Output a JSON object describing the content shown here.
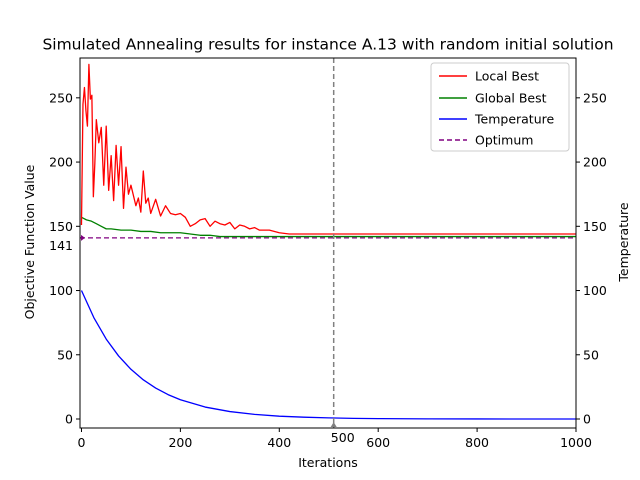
{
  "chart_data": {
    "type": "line",
    "title": "Simulated Annealing results for instance A.13 with random initial solution",
    "xlabel": "Iterations",
    "ylabel_left": "Objective Function Value",
    "ylabel_right": "Temperature",
    "xlim": [
      -3,
      1000
    ],
    "ylim": [
      -7,
      281
    ],
    "xticks": [
      "0",
      "200",
      "400",
      "500",
      "600",
      "800",
      "1000"
    ],
    "xtick_values": [
      0,
      200,
      400,
      500,
      600,
      800,
      1000
    ],
    "yticks_left": [
      "0",
      "50",
      "100",
      "141",
      "150",
      "200",
      "250"
    ],
    "ytick_values_left": [
      0,
      50,
      100,
      141,
      150,
      200,
      250
    ],
    "yticks_right": [
      "0",
      "50",
      "100",
      "150",
      "200",
      "250"
    ],
    "ytick_values_right": [
      0,
      50,
      100,
      150,
      200,
      250
    ],
    "legend": {
      "position": "top-right",
      "entries": [
        "Local Best",
        "Global Best",
        "Temperature",
        "Optimum"
      ]
    },
    "grid": false,
    "vline": {
      "x": 510,
      "color": "#808080",
      "style": "dashed"
    },
    "series": [
      {
        "name": "Local Best",
        "color": "#ff0000",
        "x": [
          0,
          3,
          6,
          9,
          12,
          15,
          18,
          21,
          24,
          27,
          30,
          35,
          40,
          45,
          50,
          55,
          60,
          65,
          70,
          75,
          80,
          85,
          90,
          95,
          100,
          110,
          115,
          120,
          125,
          130,
          135,
          140,
          150,
          160,
          170,
          180,
          190,
          200,
          210,
          220,
          230,
          240,
          250,
          260,
          270,
          280,
          290,
          300,
          310,
          320,
          330,
          340,
          350,
          360,
          380,
          400,
          420,
          440,
          500,
          600,
          700,
          800,
          900,
          1000
        ],
        "y": [
          151,
          245,
          258,
          240,
          228,
          276,
          249,
          252,
          173,
          199,
          233,
          215,
          227,
          182,
          228,
          178,
          205,
          170,
          213,
          182,
          212,
          164,
          196,
          175,
          182,
          166,
          172,
          161,
          193,
          168,
          172,
          160,
          171,
          158,
          166,
          160,
          159,
          160,
          157,
          150,
          152,
          155,
          156,
          150,
          154,
          152,
          151,
          153,
          148,
          151,
          150,
          148,
          149,
          147,
          147,
          145,
          144,
          144,
          144,
          144,
          144,
          144,
          144,
          144
        ]
      },
      {
        "name": "Global Best",
        "color": "#008000",
        "x": [
          0,
          5,
          10,
          20,
          30,
          40,
          50,
          60,
          80,
          100,
          120,
          140,
          160,
          180,
          200,
          220,
          240,
          260,
          280,
          300,
          350,
          400,
          450,
          500,
          600,
          700,
          800,
          900,
          1000
        ],
        "y": [
          157,
          156,
          155,
          154,
          152,
          150,
          148,
          148,
          147,
          147,
          146,
          146,
          145,
          145,
          145,
          144,
          143,
          143,
          142,
          142,
          142,
          142,
          142,
          142,
          142,
          142,
          142,
          142,
          142
        ]
      },
      {
        "name": "Temperature",
        "color": "#0000ff",
        "x": [
          0,
          25,
          50,
          75,
          100,
          125,
          150,
          175,
          200,
          250,
          300,
          350,
          400,
          450,
          500,
          550,
          600,
          700,
          800,
          900,
          1000
        ],
        "y": [
          100,
          78.9,
          62.2,
          49.1,
          38.7,
          30.5,
          24.1,
          19.0,
          15.0,
          9.3,
          5.8,
          3.6,
          2.2,
          1.4,
          0.9,
          0.5,
          0.3,
          0.1,
          0.05,
          0.02,
          0.01
        ]
      },
      {
        "name": "Optimum",
        "color": "#800080",
        "style": "dashed",
        "x": [
          -3,
          1000
        ],
        "y": [
          141,
          141
        ]
      }
    ]
  }
}
